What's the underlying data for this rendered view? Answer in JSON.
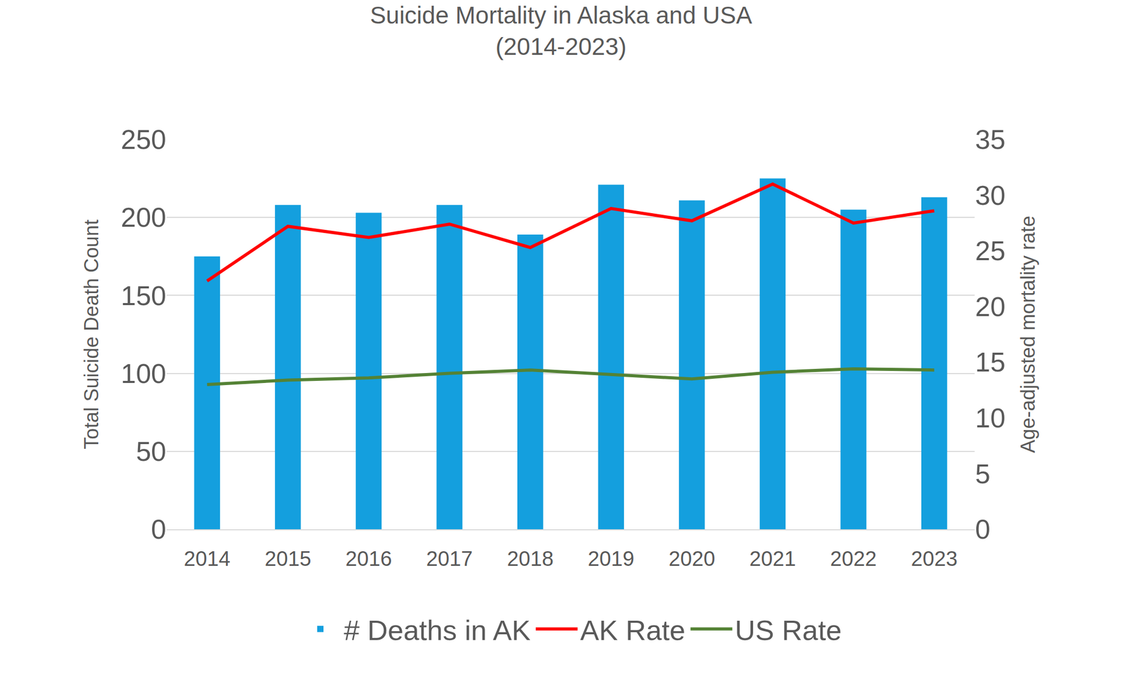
{
  "chart_data": {
    "type": "bar",
    "title": "Suicide Mortality in Alaska and USA",
    "subtitle": "(2014-2023)",
    "categories": [
      "2014",
      "2015",
      "2016",
      "2017",
      "2018",
      "2019",
      "2020",
      "2021",
      "2022",
      "2023"
    ],
    "series": [
      {
        "name": "# Deaths in AK",
        "type": "bar",
        "color": "#149FDE",
        "values": [
          175,
          208,
          203,
          208,
          189,
          221,
          211,
          225,
          205,
          213
        ]
      },
      {
        "name": "AK Rate",
        "type": "line",
        "axis": "y2",
        "color": "#FF0000",
        "values": [
          22.3,
          27.2,
          26.2,
          27.4,
          25.3,
          28.8,
          27.7,
          31.0,
          27.5,
          28.6
        ]
      },
      {
        "name": "US Rate",
        "type": "line",
        "axis": "y2",
        "color": "#548235",
        "values": [
          13.0,
          13.4,
          13.6,
          14.0,
          14.3,
          13.9,
          13.5,
          14.1,
          14.4,
          14.3
        ]
      }
    ],
    "y_label": "Total Suicide Death Count",
    "y2_label": "Age-adjusted mortality rate",
    "ylim": [
      0,
      250
    ],
    "yticks": [
      0,
      50,
      100,
      150,
      200,
      250
    ],
    "y2lim": [
      0,
      35
    ],
    "y2ticks": [
      0,
      5,
      10,
      15,
      20,
      25,
      30,
      35
    ],
    "grid": true,
    "legend": "bottom"
  }
}
